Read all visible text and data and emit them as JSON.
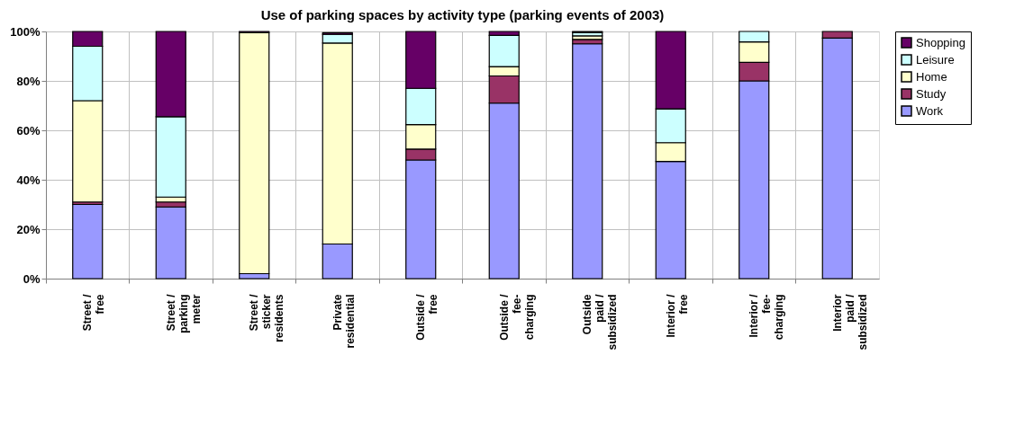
{
  "chart_data": {
    "type": "bar",
    "title": "Use of parking spaces by activity type (parking events of 2003)",
    "categories": [
      "Street /\nfree",
      "Street /\nparking\nmeter",
      "Street /\nsticker\nresidents",
      "Private\nresidential",
      "Outside /\nfree",
      "Outside /\nfee-\ncharging",
      "Outside\npaid /\nsubsidized",
      "Interior /\nfree",
      "Interior /\nfee-\ncharging",
      "Interior\npaid /\nsubsidized"
    ],
    "stacked": true,
    "series": [
      {
        "name": "Work",
        "color": "#9999ff",
        "values": [
          30,
          29,
          2,
          14,
          48,
          71,
          95,
          47.4,
          80,
          97.3
        ]
      },
      {
        "name": "Study",
        "color": "#993366",
        "values": [
          1,
          2,
          0,
          null,
          4.4,
          11,
          1.8,
          0,
          7.5,
          2.7
        ]
      },
      {
        "name": "Home",
        "color": "#ffffcc",
        "values": [
          41,
          2,
          97.5,
          81.3,
          9.9,
          3.8,
          1.4,
          7.6,
          8.3,
          0
        ]
      },
      {
        "name": "Leisure",
        "color": "#ccffff",
        "values": [
          22,
          32.5,
          0,
          3.6,
          14.7,
          12.6,
          1.4,
          13.7,
          4.2,
          0
        ]
      },
      {
        "name": "Shopping",
        "color": "#660066",
        "values": [
          6,
          34.5,
          0.5,
          0.6,
          23,
          1.6,
          0.4,
          31.3,
          0,
          0
        ]
      }
    ],
    "ylim": [
      0,
      100
    ],
    "yticks": [
      {
        "value": 0,
        "label": "0%"
      },
      {
        "value": 20,
        "label": "20%"
      },
      {
        "value": 40,
        "label": "40%"
      },
      {
        "value": 60,
        "label": "60%"
      },
      {
        "value": 80,
        "label": "80%"
      },
      {
        "value": 100,
        "label": "100%"
      }
    ],
    "grid": true,
    "legend": "right"
  }
}
